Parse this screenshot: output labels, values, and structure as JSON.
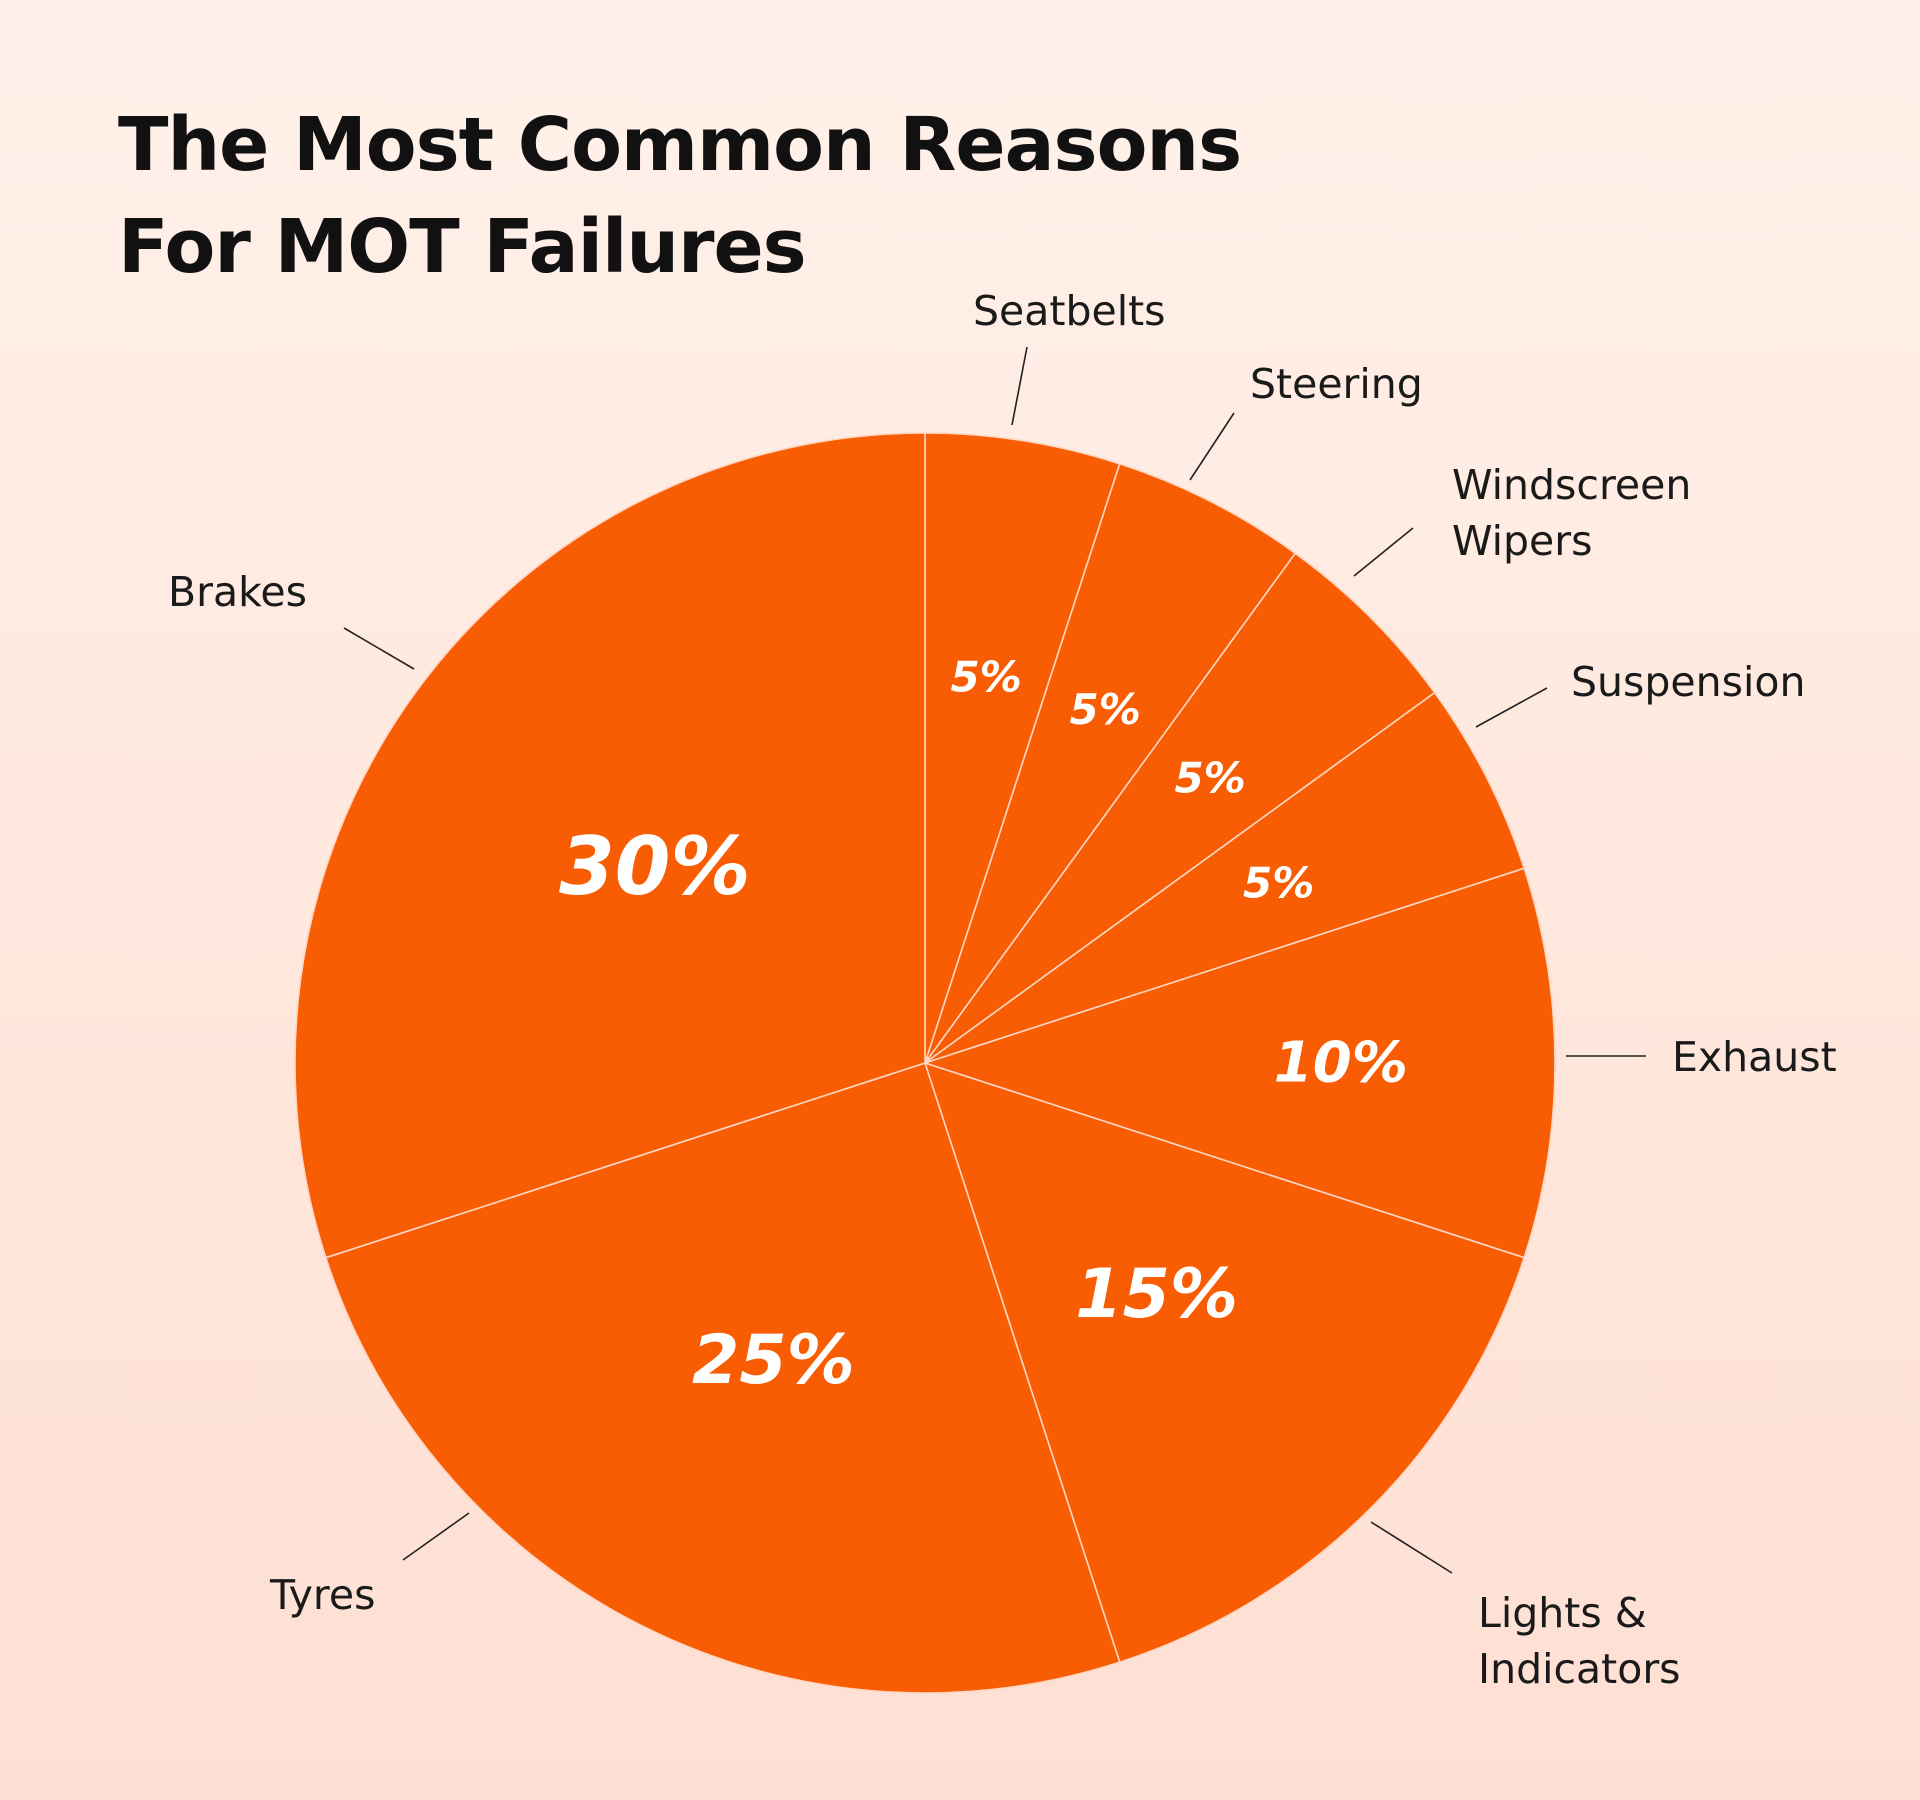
{
  "chart_data": {
    "type": "pie",
    "title_lines": [
      "The Most Common Reasons",
      "For MOT Failures"
    ],
    "slices": [
      {
        "label": "Seatbelts",
        "value": 5,
        "value_label": "5%"
      },
      {
        "label": "Steering",
        "value": 5,
        "value_label": "5%"
      },
      {
        "label": "Windscreen\nWipers",
        "value": 5,
        "value_label": "5%"
      },
      {
        "label": "Suspension",
        "value": 5,
        "value_label": "5%"
      },
      {
        "label": "Exhaust",
        "value": 10,
        "value_label": "10%"
      },
      {
        "label": "Lights &\nIndicators",
        "value": 15,
        "value_label": "15%"
      },
      {
        "label": "Tyres",
        "value": 25,
        "value_label": "25%"
      },
      {
        "label": "Brakes",
        "value": 30,
        "value_label": "30%"
      }
    ],
    "colors": {
      "slice": "#f85d04",
      "separator": "#ffd6c2"
    },
    "legend": "none"
  }
}
